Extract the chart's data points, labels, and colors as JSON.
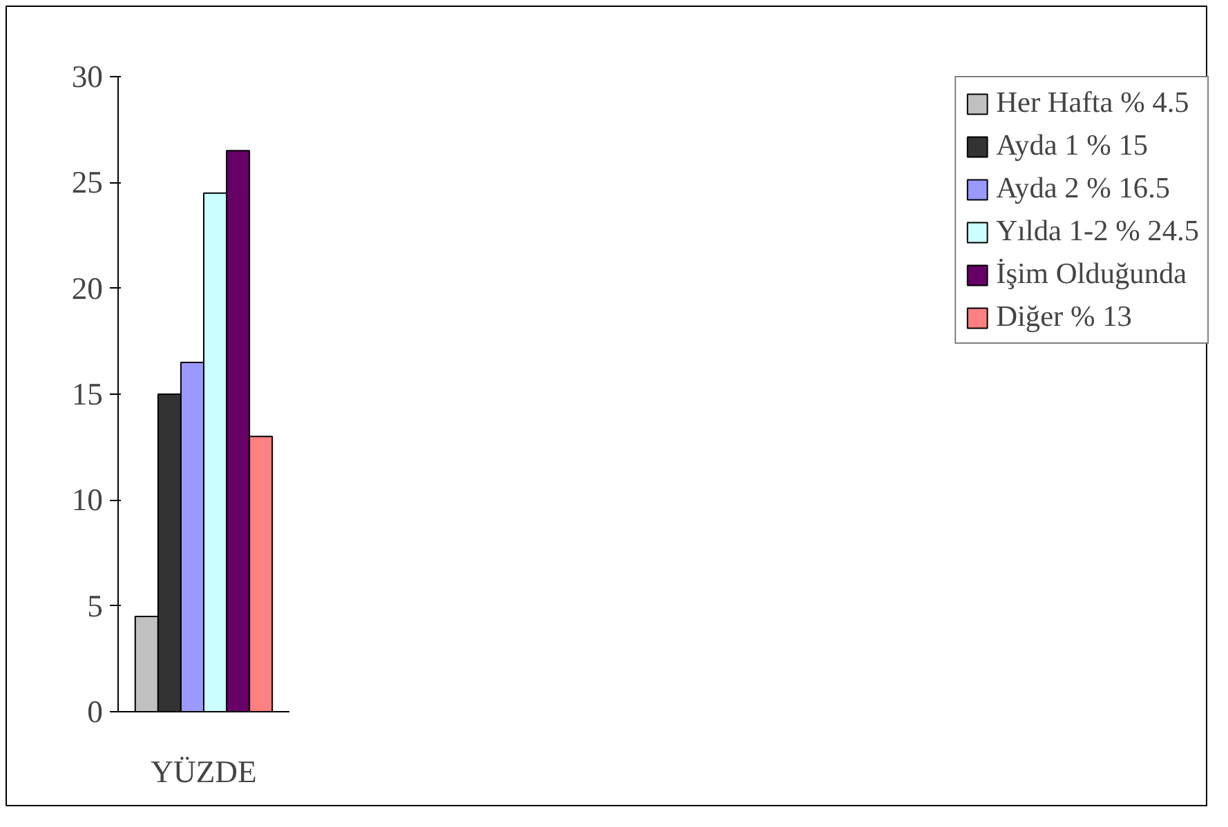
{
  "chart_data": {
    "type": "bar",
    "categories": [
      "YÜZDE"
    ],
    "series": [
      {
        "name": "Her Hafta % 4.5",
        "color": "#c0c0c0",
        "values": [
          4.5
        ]
      },
      {
        "name": "Ayda 1 % 15",
        "color": "#333333",
        "values": [
          15
        ]
      },
      {
        "name": "Ayda 2 % 16.5",
        "color": "#9999ff",
        "values": [
          16.5
        ]
      },
      {
        "name": "Yılda 1-2 % 24.5",
        "color": "#ccffff",
        "values": [
          24.5
        ]
      },
      {
        "name": "İşim Olduğunda",
        "color": "#660066",
        "values": [
          26.5
        ]
      },
      {
        "name": "Diğer % 13",
        "color": "#ff8080",
        "values": [
          13
        ]
      }
    ],
    "ylim": [
      0,
      30
    ],
    "yticks": [
      0,
      5,
      10,
      15,
      20,
      25,
      30
    ],
    "grid": false,
    "legend": "right"
  }
}
